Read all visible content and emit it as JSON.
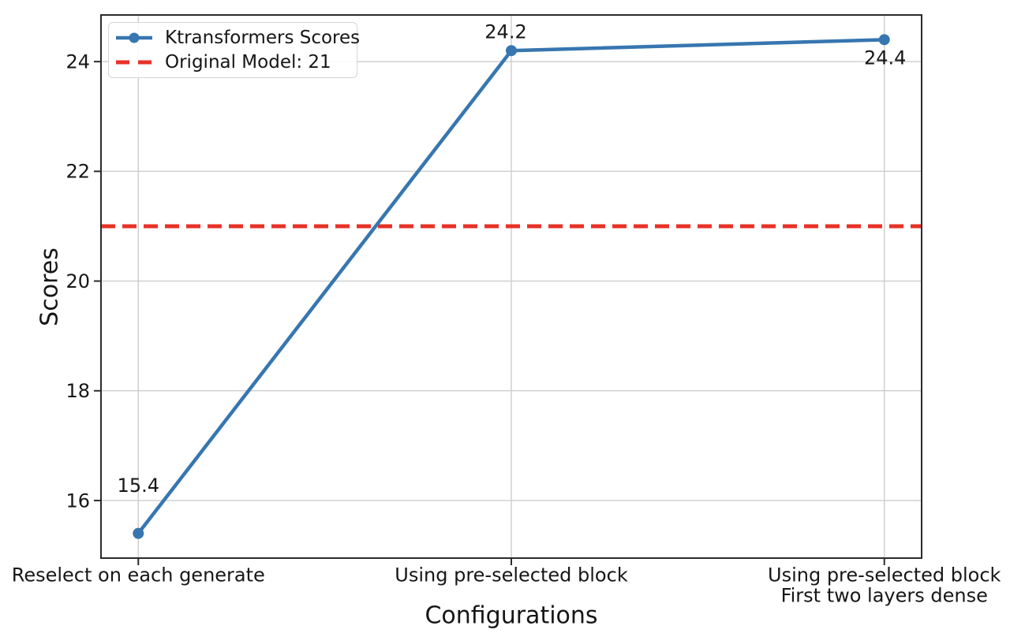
{
  "colors": {
    "background": "#ffffff",
    "grid": "#cdcdcd",
    "spine": "#2b2b2b",
    "text": "#161616",
    "series_blue": "#3776b0",
    "series_red": "#e83127"
  },
  "chart_data": {
    "type": "line",
    "title": "",
    "xlabel": "Configurations",
    "ylabel": "Scores",
    "categories": [
      "Reselect on each generate",
      "Using pre-selected block",
      "Using pre-selected block\nFirst two layers dense"
    ],
    "series": [
      {
        "name": "Ktransformers Scores",
        "values": [
          15.4,
          24.2,
          24.4
        ],
        "color": "#3776b0",
        "line_style": "solid",
        "marker": "circle"
      },
      {
        "name": "Original Model: 21",
        "values": [
          21,
          21,
          21
        ],
        "color": "#e83127",
        "line_style": "dashed",
        "marker": "none",
        "reference_value": 21
      }
    ],
    "point_labels": [
      "15.4",
      "24.2",
      "24.4"
    ],
    "yticks": [
      16,
      18,
      20,
      22,
      24
    ],
    "ylim": [
      14.95,
      24.85
    ],
    "xlim": [
      -0.1,
      2.1
    ],
    "grid": true,
    "legend_position": "upper left"
  }
}
